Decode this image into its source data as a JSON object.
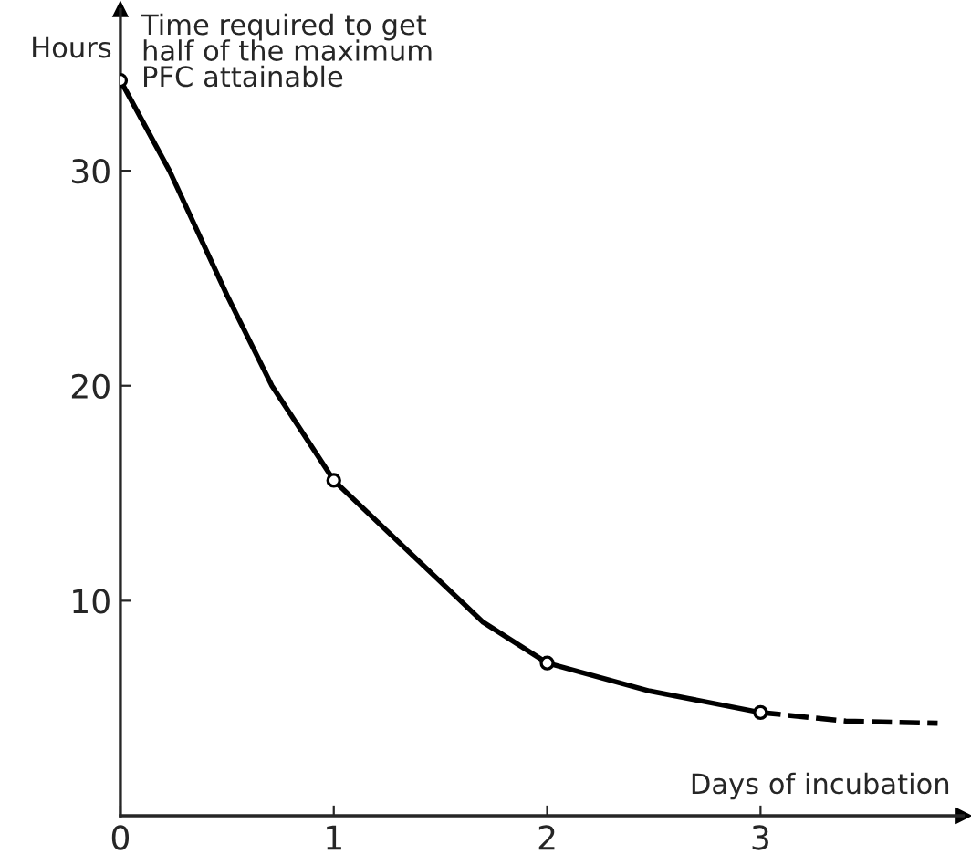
{
  "chart_data": {
    "type": "line",
    "title": "Time required to get\nhalf of the maximum\nPFC attainable",
    "ylabel": "Hours",
    "xlabel": "Days of incubation",
    "xlim": [
      0,
      3.95
    ],
    "ylim": [
      0,
      37.5
    ],
    "xticks": [
      0,
      1,
      2,
      3
    ],
    "yticks": [
      10,
      20,
      30
    ],
    "grid": false,
    "legend": false,
    "series": [
      {
        "color": "#000000",
        "line_style": "solid",
        "marker": "none",
        "x": [
          0,
          0.23,
          0.5,
          0.71,
          1,
          1.35,
          1.7,
          2,
          2.48,
          3
        ],
        "values": [
          34.2,
          30,
          24.2,
          20,
          15.6,
          12.3,
          9,
          7.1,
          5.8,
          4.8
        ]
      },
      {
        "color": "#000000",
        "line_style": "dashed",
        "marker": "none",
        "x": [
          3,
          3.4,
          3.83
        ],
        "values": [
          4.8,
          4.4,
          4.3
        ]
      },
      {
        "type": "scatter",
        "color": "#000000",
        "marker": "circle",
        "x": [
          0,
          1,
          2,
          3
        ],
        "values": [
          34.2,
          15.6,
          7.1,
          4.8
        ]
      }
    ]
  }
}
